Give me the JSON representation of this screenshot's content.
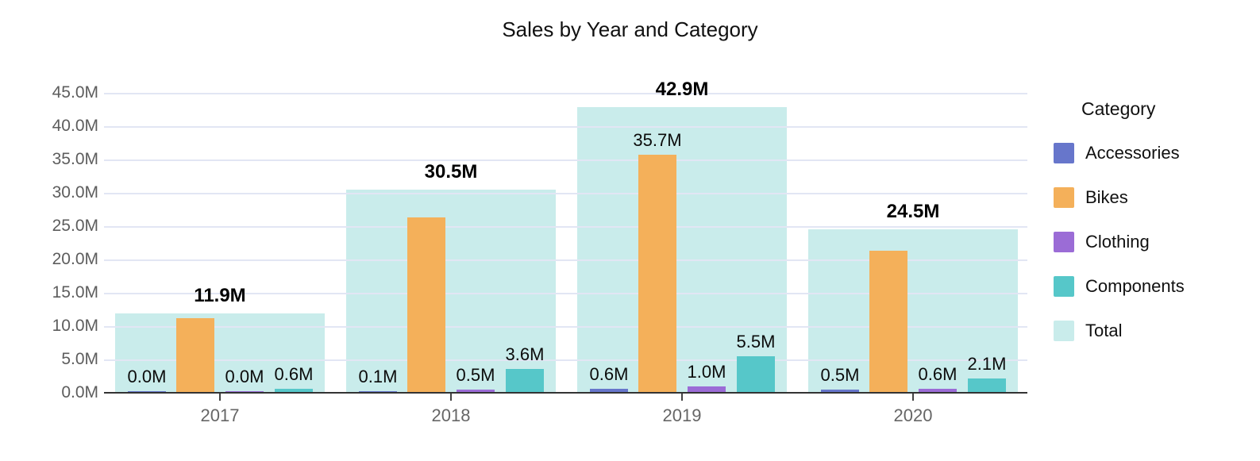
{
  "title": "Sales by Year and Category",
  "chart_data": {
    "type": "bar",
    "title": "Sales by Year and Category",
    "categories": [
      "2017",
      "2018",
      "2019",
      "2020"
    ],
    "series": [
      {
        "name": "Accessories",
        "color": "#6776CB",
        "values": [
          0.0,
          0.1,
          0.6,
          0.5
        ],
        "value_labels": [
          "0.0M",
          "0.1M",
          "0.6M",
          "0.5M"
        ]
      },
      {
        "name": "Bikes",
        "color": "#F4B05A",
        "values": [
          11.2,
          26.3,
          35.7,
          21.3
        ],
        "value_labels": [
          "",
          "",
          "35.7M",
          ""
        ]
      },
      {
        "name": "Clothing",
        "color": "#9B6CD6",
        "values": [
          0.0,
          0.5,
          1.0,
          0.6
        ],
        "value_labels": [
          "0.0M",
          "0.5M",
          "1.0M",
          "0.6M"
        ]
      },
      {
        "name": "Components",
        "color": "#56C7C9",
        "values": [
          0.6,
          3.6,
          5.5,
          2.1
        ],
        "value_labels": [
          "0.6M",
          "3.6M",
          "5.5M",
          "2.1M"
        ]
      }
    ],
    "total_series": {
      "name": "Total",
      "color": "#C9ECEB",
      "values": [
        11.9,
        30.5,
        42.9,
        24.5
      ],
      "value_labels": [
        "11.9M",
        "30.5M",
        "42.9M",
        "24.5M"
      ]
    },
    "ylim": [
      0,
      45
    ],
    "ytick_labels": [
      "0.0M",
      "5.0M",
      "10.0M",
      "15.0M",
      "20.0M",
      "25.0M",
      "30.0M",
      "35.0M",
      "40.0M",
      "45.0M"
    ],
    "grid": true,
    "legend": {
      "title": "Category",
      "position": "right",
      "entries": [
        "Accessories",
        "Bikes",
        "Clothing",
        "Components",
        "Total"
      ]
    },
    "colors": {
      "gridline": "#E2E6F4",
      "axis_line": "#333333",
      "tick_label": "#5d5d5d",
      "value_label": "#0b0b0b"
    }
  }
}
